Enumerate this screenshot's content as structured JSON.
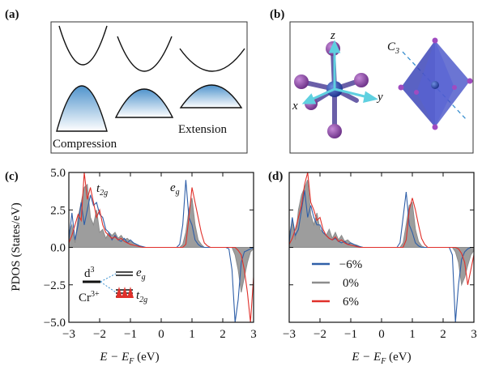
{
  "panel_a": {
    "label": "(a)",
    "texts": [
      "Compression",
      "Extension"
    ]
  },
  "panel_b": {
    "label": "(b)",
    "axes": [
      "z",
      "x",
      "y"
    ],
    "rotation_axis": {
      "base": "C",
      "sub": "3"
    }
  },
  "chart_data": [
    {
      "type": "line",
      "label": "(c)",
      "ylabel": "PDOS (States/eV)",
      "xlabel": {
        "base": "E − E",
        "sub": "F",
        "tail": " (eV)"
      },
      "annotations": [
        {
          "base": "t",
          "sub": "2g"
        },
        {
          "base": "e",
          "sub": "g"
        }
      ],
      "inset": [
        {
          "base": "d",
          "sup": "3"
        },
        {
          "base": "Cr",
          "sup": "3+"
        },
        {
          "base": "e",
          "sub": "g"
        },
        {
          "base": "t",
          "sub": "2g"
        }
      ],
      "xlim": [
        -3,
        3
      ],
      "ylim": [
        -5,
        5
      ],
      "xticks": [
        {
          "value": -3,
          "label": "−3"
        },
        {
          "value": -2,
          "label": "−2"
        },
        {
          "value": -1,
          "label": "−1"
        },
        0,
        1,
        2,
        3
      ],
      "yticks": [
        {
          "value": -5,
          "label": "−5.0"
        },
        {
          "value": -2.5,
          "label": "−2.5"
        },
        {
          "value": 0,
          "label": "0.0"
        },
        {
          "value": 2.5,
          "label": "2.5"
        },
        {
          "value": 5,
          "label": "5.0"
        }
      ],
      "x": [
        -3.0,
        -2.9,
        -2.8,
        -2.7,
        -2.6,
        -2.5,
        -2.4,
        -2.3,
        -2.2,
        -2.1,
        -2.0,
        -1.9,
        -1.8,
        -1.7,
        -1.6,
        -1.5,
        -1.4,
        -1.3,
        -1.2,
        -1.1,
        -1.0,
        -0.9,
        -0.8,
        -0.7,
        -0.6,
        -0.5,
        -0.4,
        -0.3,
        -0.2,
        -0.1,
        0.0,
        0.1,
        0.2,
        0.3,
        0.4,
        0.5,
        0.6,
        0.7,
        0.8,
        0.9,
        1.0,
        1.1,
        1.2,
        1.3,
        1.4,
        1.5,
        1.6,
        1.7,
        1.8,
        1.9,
        2.0,
        2.1,
        2.2,
        2.3,
        2.4,
        2.5,
        2.6,
        2.7,
        2.8,
        2.9,
        3.0
      ],
      "series": [
        {
          "color": "#8c8c8c",
          "area": true,
          "values": [
            1.0,
            1.5,
            0.3,
            2.0,
            3.0,
            4.0,
            4.2,
            2.0,
            1.5,
            2.5,
            1.0,
            1.2,
            0.6,
            1.0,
            0.8,
            1.0,
            0.6,
            0.8,
            0.5,
            0.6,
            0.4,
            0.3,
            0.2,
            0.1,
            0,
            0,
            0,
            0,
            0,
            0,
            0,
            0,
            0,
            0,
            0,
            0,
            0,
            0.2,
            1.0,
            2.5,
            3.3,
            1.5,
            0.5,
            0.2,
            0,
            0,
            0,
            0,
            0,
            0,
            0,
            0,
            0,
            0,
            -0.5,
            -1.5,
            -3.0,
            -2.0,
            -1.0,
            -0.3,
            -0.1
          ]
        },
        {
          "color": "#2f5fa8",
          "values": [
            0.5,
            2.3,
            0.5,
            1.5,
            3.0,
            1.5,
            2.5,
            3.5,
            2.8,
            3.0,
            2.2,
            2.0,
            1.2,
            1.0,
            0.5,
            0.8,
            0.5,
            0.4,
            0.6,
            0.3,
            0.5,
            0.3,
            0.2,
            0.1,
            0.05,
            0,
            0,
            0,
            0,
            0,
            0,
            0,
            0,
            0,
            0,
            0,
            0.2,
            1.5,
            4.5,
            2.0,
            1.5,
            0.5,
            0.2,
            0.05,
            0,
            0,
            0,
            0,
            0,
            0,
            0,
            0,
            -0.1,
            -1.5,
            -5,
            -3.5,
            -1,
            -0.3,
            -0.2,
            -0.1,
            0
          ]
        },
        {
          "color": "#e0302a",
          "values": [
            0.3,
            0.8,
            1.5,
            2.2,
            1.8,
            5.0,
            3.2,
            4.0,
            3.0,
            2.0,
            2.5,
            1.5,
            1.0,
            0.8,
            0.6,
            0.7,
            0.5,
            0.6,
            0.4,
            0.3,
            0.2,
            0.15,
            0.1,
            0.05,
            0,
            0,
            0,
            0,
            0,
            0,
            0,
            0,
            0,
            0,
            0,
            0,
            0,
            0,
            0.2,
            2.0,
            4.0,
            3.0,
            2.0,
            1.0,
            0.3,
            0.1,
            0,
            0,
            0,
            0,
            0,
            0,
            0,
            0,
            0,
            -0.2,
            -0.5,
            -1.5,
            -3.0,
            -5.0,
            -2.0
          ]
        }
      ]
    },
    {
      "type": "line",
      "label": "(d)",
      "xlabel": {
        "base": "E − E",
        "sub": "F",
        "tail": " (eV)"
      },
      "legend": "lower left",
      "xlim": [
        -3,
        3
      ],
      "ylim": [
        -5,
        5
      ],
      "xticks": [
        {
          "value": -3,
          "label": "−3"
        },
        {
          "value": -2,
          "label": "−2"
        },
        {
          "value": -1,
          "label": "−1"
        },
        0,
        1,
        2,
        3
      ],
      "yticks": [
        -5,
        -2.5,
        0,
        2.5,
        5
      ],
      "x": [
        -3.0,
        -2.9,
        -2.8,
        -2.7,
        -2.6,
        -2.5,
        -2.4,
        -2.3,
        -2.2,
        -2.1,
        -2.0,
        -1.9,
        -1.8,
        -1.7,
        -1.6,
        -1.5,
        -1.4,
        -1.3,
        -1.2,
        -1.1,
        -1.0,
        -0.9,
        -0.8,
        -0.7,
        -0.6,
        -0.5,
        -0.4,
        -0.3,
        -0.2,
        -0.1,
        0.0,
        0.1,
        0.2,
        0.3,
        0.4,
        0.5,
        0.6,
        0.7,
        0.8,
        0.9,
        1.0,
        1.1,
        1.2,
        1.3,
        1.4,
        1.5,
        1.6,
        1.7,
        1.8,
        1.9,
        2.0,
        2.1,
        2.2,
        2.3,
        2.4,
        2.5,
        2.6,
        2.7,
        2.8,
        2.9,
        3.0
      ],
      "series": [
        {
          "name": "−6%",
          "color": "#2f5fa8",
          "values": [
            0.3,
            2.0,
            0.8,
            1.2,
            2.5,
            3.8,
            2.0,
            2.8,
            2.0,
            1.5,
            1.5,
            1.0,
            0.8,
            0.6,
            0.5,
            0.6,
            0.4,
            0.3,
            0.4,
            0.2,
            0.3,
            0.2,
            0.1,
            0.05,
            0,
            0,
            0,
            0,
            0,
            0,
            0,
            0,
            0,
            0,
            0,
            0,
            0.3,
            2.0,
            3.7,
            1.5,
            1.0,
            0.3,
            0.1,
            0,
            0,
            0,
            0,
            0,
            0,
            0,
            0,
            0,
            0,
            -0.5,
            -5,
            -2.5,
            -0.8,
            -0.3,
            -0.1,
            0,
            0
          ]
        },
        {
          "name": "0%",
          "color": "#8c8c8c",
          "area": true,
          "values": [
            0.8,
            1.8,
            0.5,
            2.5,
            3.5,
            4.0,
            4.5,
            2.2,
            1.5,
            2.3,
            1.2,
            1.0,
            0.8,
            1.2,
            0.6,
            1.0,
            0.5,
            0.8,
            0.4,
            0.5,
            0.3,
            0.2,
            0.15,
            0.05,
            0,
            0,
            0,
            0,
            0,
            0,
            0,
            0,
            0,
            0,
            0,
            0,
            0,
            0.3,
            1.5,
            2.8,
            3.0,
            1.2,
            0.4,
            0.1,
            0,
            0,
            0,
            0,
            0,
            0,
            0,
            0,
            0,
            0,
            -0.3,
            -1.0,
            -2.5,
            -2.0,
            -1.2,
            -0.5,
            -0.2
          ]
        },
        {
          "name": "6%",
          "color": "#e0302a",
          "values": [
            0.2,
            0.6,
            1.2,
            2.0,
            2.8,
            4.2,
            5.0,
            3.0,
            2.5,
            1.8,
            2.0,
            1.2,
            0.8,
            0.6,
            0.5,
            0.7,
            0.4,
            0.5,
            0.3,
            0.2,
            0.15,
            0.1,
            0.05,
            0,
            0,
            0,
            0,
            0,
            0,
            0,
            0,
            0,
            0,
            0,
            0,
            0,
            0,
            0,
            0.5,
            2.5,
            3.3,
            2.5,
            1.5,
            0.6,
            0.2,
            0,
            0,
            0,
            0,
            0,
            0,
            0,
            0,
            0,
            0,
            -0.1,
            -0.4,
            -1.0,
            -2.5,
            -1.5,
            -0.5
          ]
        }
      ]
    }
  ]
}
